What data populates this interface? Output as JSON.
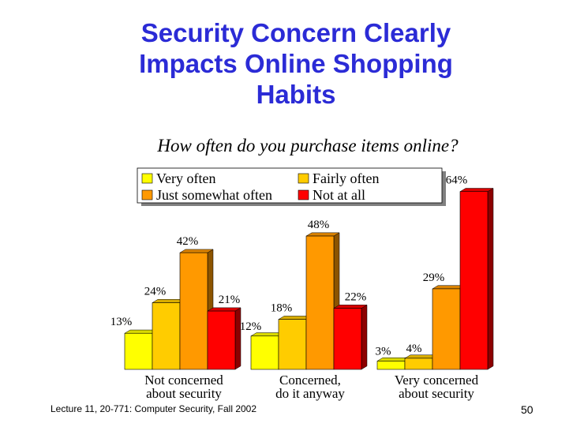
{
  "slide": {
    "title_lines": [
      "Security Concern Clearly",
      "Impacts Online Shopping",
      "Habits"
    ],
    "footer": "Lecture 11, 20-771: Computer Security, Fall 2002",
    "page_number": "50"
  },
  "chart_data": {
    "type": "bar",
    "title": "How often do you purchase items online?",
    "categories": [
      [
        "Not concerned",
        "about security"
      ],
      [
        "Concerned,",
        "do it anyway"
      ],
      [
        "Very concerned",
        "about security"
      ]
    ],
    "series": [
      {
        "name": "Very often",
        "color": "#ffff00",
        "values": [
          13,
          12,
          3
        ]
      },
      {
        "name": "Fairly often",
        "color": "#ffcc00",
        "values": [
          24,
          18,
          4
        ]
      },
      {
        "name": "Just somewhat often",
        "color": "#ff9900",
        "values": [
          42,
          48,
          29
        ]
      },
      {
        "name": "Not at all",
        "color": "#ff0000",
        "values": [
          21,
          22,
          64
        ]
      }
    ],
    "value_suffix": "%",
    "ylim": [
      0,
      70
    ],
    "grid": false,
    "legend_position": "top-left, inside plot"
  }
}
